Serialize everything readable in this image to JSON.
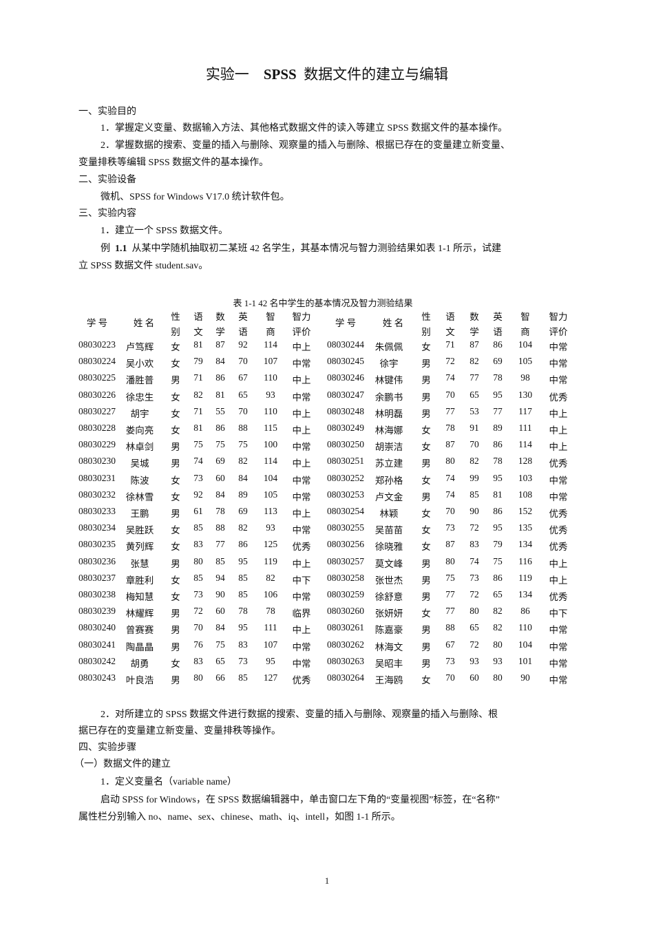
{
  "title": {
    "prefix": "实验一",
    "bold": "SPSS",
    "suffix": "数据文件的建立与编辑"
  },
  "sections": {
    "s1": "一、实验目的",
    "s1_p1": "1．掌握定义变量、数据输入方法、其他格式数据文件的读入等建立  SPSS  数据文件的基本操作。",
    "s1_p2a": "2．掌握数据的搜索、变量的插入与删除、观察量的插入与删除、根据已存在的变量建立新变量、",
    "s1_p2b": "变量排秩等编辑  SPSS  数据文件的基本操作。",
    "s2": "二、实验设备",
    "s2_p1": "微机、SPSS for Windows V17.0  统计软件包。",
    "s3": "三、实验内容",
    "s3_p1": "1．建立一个  SPSS  数据文件。",
    "s3_ex_label": "例",
    "s3_ex_num": "1.1",
    "s3_ex_a": "从某中学随机抽取初二某班  42  名学生，其基本情况与智力测验结果如表  1-1  所示，试建",
    "s3_ex_b": "立  SPSS  数据文件  student.sav。",
    "s3_p2a": "2．对所建立的  SPSS  数据文件进行数据的搜索、变量的插入与删除、观察量的插入与删除、根",
    "s3_p2b": "据已存在的变量建立新变量、变量排秩等操作。",
    "s4": "四、实验步骤",
    "s4_sub1": "（一）数据文件的建立",
    "s4_p1": "1．定义变量名（variable name）",
    "s4_p2a": "启动  SPSS for Windows，在  SPSS  数据编辑器中，单击窗口左下角的“变量视图”标签，在“名称”",
    "s4_p2b": "属性栏分别输入  no、name、sex、chinese、math、iq、intell，如图  1-1  所示。"
  },
  "table": {
    "caption": "表  1-1 42  名中学生的基本情况及智力测验结果",
    "headers": [
      [
        "学  号"
      ],
      [
        "姓  名"
      ],
      [
        "性",
        "别"
      ],
      [
        "语",
        "文"
      ],
      [
        "数",
        "学"
      ],
      [
        "英",
        "语"
      ],
      [
        "智",
        "商"
      ],
      [
        "智力",
        "评价"
      ]
    ],
    "left_rows": [
      [
        "08030223",
        "卢笃辉",
        "女",
        "81",
        "87",
        "92",
        "114",
        "中上"
      ],
      [
        "08030224",
        "吴小欢",
        "女",
        "79",
        "84",
        "70",
        "107",
        "中常"
      ],
      [
        "08030225",
        "潘胜普",
        "男",
        "71",
        "86",
        "67",
        "110",
        "中上"
      ],
      [
        "08030226",
        "徐忠生",
        "女",
        "82",
        "81",
        "65",
        "93",
        "中常"
      ],
      [
        "08030227",
        "胡宇",
        "女",
        "71",
        "55",
        "70",
        "110",
        "中上"
      ],
      [
        "08030228",
        "娄向亮",
        "女",
        "81",
        "86",
        "88",
        "115",
        "中上"
      ],
      [
        "08030229",
        "林卓剑",
        "男",
        "75",
        "75",
        "75",
        "100",
        "中常"
      ],
      [
        "08030230",
        "吴城",
        "男",
        "74",
        "69",
        "82",
        "114",
        "中上"
      ],
      [
        "08030231",
        "陈波",
        "女",
        "73",
        "60",
        "84",
        "104",
        "中常"
      ],
      [
        "08030232",
        "徐林雪",
        "女",
        "92",
        "84",
        "89",
        "105",
        "中常"
      ],
      [
        "08030233",
        "王鹏",
        "男",
        "61",
        "78",
        "69",
        "113",
        "中上"
      ],
      [
        "08030234",
        "吴胜跃",
        "女",
        "85",
        "88",
        "82",
        "93",
        "中常"
      ],
      [
        "08030235",
        "黄列辉",
        "女",
        "83",
        "77",
        "86",
        "125",
        "优秀"
      ],
      [
        "08030236",
        "张慧",
        "男",
        "80",
        "85",
        "95",
        "119",
        "中上"
      ],
      [
        "08030237",
        "章胜利",
        "女",
        "85",
        "94",
        "85",
        "82",
        "中下"
      ],
      [
        "08030238",
        "梅知慧",
        "女",
        "73",
        "90",
        "85",
        "106",
        "中常"
      ],
      [
        "08030239",
        "林耀辉",
        "男",
        "72",
        "60",
        "78",
        "78",
        "临界"
      ],
      [
        "08030240",
        "曾赛赛",
        "男",
        "70",
        "84",
        "95",
        "111",
        "中上"
      ],
      [
        "08030241",
        "陶晶晶",
        "男",
        "76",
        "75",
        "83",
        "107",
        "中常"
      ],
      [
        "08030242",
        "胡勇",
        "女",
        "83",
        "65",
        "73",
        "95",
        "中常"
      ],
      [
        "08030243",
        "叶良浩",
        "男",
        "80",
        "66",
        "85",
        "127",
        "优秀"
      ]
    ],
    "right_rows": [
      [
        "08030244",
        "朱佩佩",
        "女",
        "71",
        "87",
        "86",
        "104",
        "中常"
      ],
      [
        "08030245",
        "徐宇",
        "男",
        "72",
        "82",
        "69",
        "105",
        "中常"
      ],
      [
        "08030246",
        "林键伟",
        "男",
        "74",
        "77",
        "78",
        "98",
        "中常"
      ],
      [
        "08030247",
        "余鹏书",
        "男",
        "70",
        "65",
        "95",
        "130",
        "优秀"
      ],
      [
        "08030248",
        "林明磊",
        "男",
        "77",
        "53",
        "77",
        "117",
        "中上"
      ],
      [
        "08030249",
        "林海娜",
        "女",
        "78",
        "91",
        "89",
        "111",
        "中上"
      ],
      [
        "08030250",
        "胡崇洁",
        "女",
        "87",
        "70",
        "86",
        "114",
        "中上"
      ],
      [
        "08030251",
        "苏立建",
        "男",
        "80",
        "82",
        "78",
        "128",
        "优秀"
      ],
      [
        "08030252",
        "郑孙格",
        "女",
        "74",
        "99",
        "95",
        "103",
        "中常"
      ],
      [
        "08030253",
        "卢文金",
        "男",
        "74",
        "85",
        "81",
        "108",
        "中常"
      ],
      [
        "08030254",
        "林颖",
        "女",
        "70",
        "90",
        "86",
        "152",
        "优秀"
      ],
      [
        "08030255",
        "吴苗苗",
        "女",
        "73",
        "72",
        "95",
        "135",
        "优秀"
      ],
      [
        "08030256",
        "徐晓雅",
        "女",
        "87",
        "83",
        "79",
        "134",
        "优秀"
      ],
      [
        "08030257",
        "莫文峰",
        "男",
        "80",
        "74",
        "75",
        "116",
        "中上"
      ],
      [
        "08030258",
        "张世杰",
        "男",
        "75",
        "73",
        "86",
        "119",
        "中上"
      ],
      [
        "08030259",
        "徐舒意",
        "男",
        "77",
        "72",
        "65",
        "134",
        "优秀"
      ],
      [
        "08030260",
        "张妍妍",
        "女",
        "77",
        "80",
        "82",
        "86",
        "中下"
      ],
      [
        "08030261",
        "陈嘉豪",
        "男",
        "88",
        "65",
        "82",
        "110",
        "中常"
      ],
      [
        "08030262",
        "林海文",
        "男",
        "67",
        "72",
        "80",
        "104",
        "中常"
      ],
      [
        "08030263",
        "吴昭丰",
        "男",
        "73",
        "93",
        "93",
        "101",
        "中常"
      ],
      [
        "08030264",
        "王海鸥",
        "女",
        "70",
        "60",
        "80",
        "90",
        "中常"
      ]
    ]
  },
  "page_number": "1"
}
